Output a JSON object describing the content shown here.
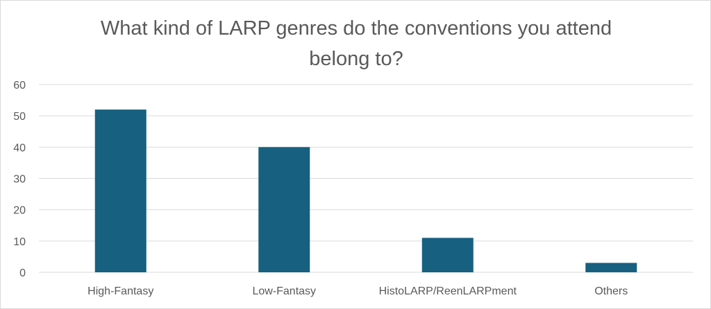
{
  "chart_data": {
    "type": "bar",
    "title": "What kind of LARP genres do the conventions you attend belong to?",
    "categories": [
      "High-Fantasy",
      "Low-Fantasy",
      "HistoLARP/ReenLARPment",
      "Others"
    ],
    "values": [
      52,
      40,
      11,
      3
    ],
    "xlabel": "",
    "ylabel": "",
    "ylim": [
      0,
      60
    ],
    "yticks": [
      "0",
      "10",
      "20",
      "30",
      "40",
      "50",
      "60"
    ],
    "grid": true,
    "legend": "none",
    "bar_color": "#17607f",
    "grid_color": "#d9d9d9"
  }
}
